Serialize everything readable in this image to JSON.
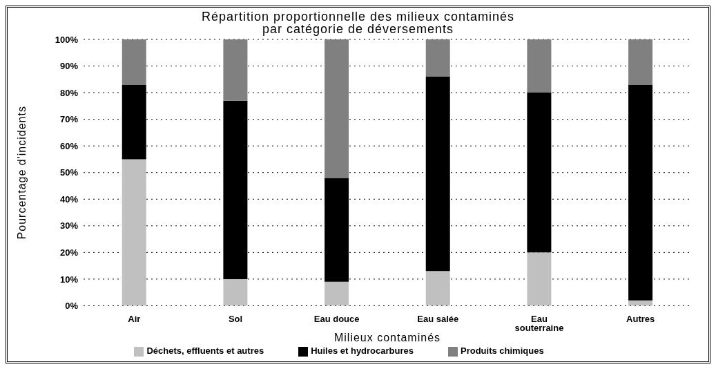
{
  "chart_data": {
    "type": "bar",
    "title": "Répartition proportionnelle des milieux contaminés\npar catégorie de déversements",
    "xlabel": "Milieux contaminés",
    "ylabel": "Pourcentage d'incidents",
    "categories": [
      "Air",
      "Sol",
      "Eau douce",
      "Eau salée",
      "Eau souterraine",
      "Autres"
    ],
    "stacked": true,
    "series": [
      {
        "name": "Déchets, effluents et autres",
        "color": "#c0c0c0",
        "values": [
          55,
          10,
          9,
          13,
          20,
          2
        ]
      },
      {
        "name": "Huiles et hydrocarbures",
        "color": "#000000",
        "values": [
          28,
          67,
          39,
          73,
          60,
          81
        ]
      },
      {
        "name": "Produits chimiques",
        "color": "#808080",
        "values": [
          17,
          23,
          52,
          14,
          20,
          17
        ]
      }
    ],
    "ylim": [
      0,
      100
    ],
    "yticks": [
      {
        "value": 0,
        "label": "0%"
      },
      {
        "value": 10,
        "label": "10%"
      },
      {
        "value": 20,
        "label": "20%"
      },
      {
        "value": 30,
        "label": "30%"
      },
      {
        "value": 40,
        "label": "40%"
      },
      {
        "value": 50,
        "label": "50%"
      },
      {
        "value": 60,
        "label": "60%"
      },
      {
        "value": 70,
        "label": "70%"
      },
      {
        "value": 80,
        "label": "80%"
      },
      {
        "value": 90,
        "label": "90%"
      },
      {
        "value": 100,
        "label": "100%"
      }
    ],
    "grid": "y",
    "legend": "bottom"
  }
}
